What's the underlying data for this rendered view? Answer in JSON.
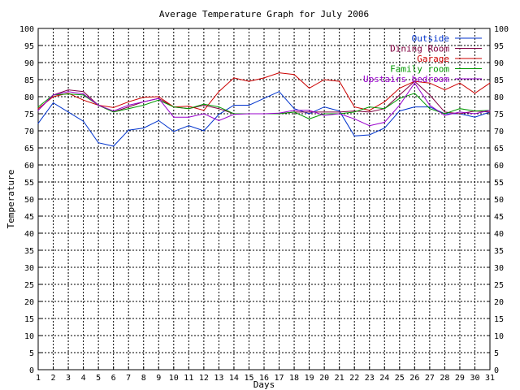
{
  "chart_data": {
    "type": "line",
    "title": "Average Temperature Graph for July 2006",
    "xlabel": "Days",
    "ylabel": "Temperature",
    "grid": true,
    "legend_position": "top-right",
    "xlim": [
      1,
      31
    ],
    "ylim": [
      0,
      100
    ],
    "x": [
      1,
      2,
      3,
      4,
      5,
      6,
      7,
      8,
      9,
      10,
      11,
      12,
      13,
      14,
      15,
      16,
      17,
      18,
      19,
      20,
      21,
      22,
      23,
      24,
      25,
      26,
      27,
      28,
      29,
      30,
      31
    ],
    "y_ticks": [
      0,
      5,
      10,
      15,
      20,
      25,
      30,
      35,
      40,
      45,
      50,
      55,
      60,
      65,
      70,
      75,
      80,
      85,
      90,
      95,
      100
    ],
    "series": [
      {
        "name": "Outside",
        "color": "#0033cc",
        "values": [
          72.2,
          78.2,
          75.5,
          72.8,
          66.5,
          65.5,
          70.2,
          70.8,
          73.0,
          69.8,
          71.5,
          70.0,
          74.8,
          77.5,
          77.5,
          79.5,
          81.5,
          76.5,
          75.0,
          77.0,
          75.8,
          68.5,
          68.8,
          70.8,
          75.8,
          77.0,
          77.0,
          75.0,
          75.0,
          74.0,
          75.5
        ]
      },
      {
        "name": "Dining Room",
        "color": "#800040",
        "values": [
          76.0,
          80.5,
          82.0,
          81.5,
          77.5,
          75.5,
          77.0,
          78.5,
          79.5,
          77.0,
          76.5,
          77.5,
          76.5,
          75.0,
          75.0,
          75.0,
          75.0,
          75.5,
          75.5,
          75.5,
          75.5,
          75.8,
          75.5,
          76.5,
          80.5,
          84.5,
          80.5,
          75.5,
          75.0,
          75.8,
          75.5
        ]
      },
      {
        "name": "Garage",
        "color": "#cc0000",
        "values": [
          76.5,
          80.0,
          81.0,
          79.0,
          77.5,
          76.8,
          78.5,
          79.8,
          80.0,
          77.0,
          77.2,
          76.0,
          81.5,
          85.5,
          84.5,
          85.5,
          87.0,
          86.5,
          82.5,
          85.0,
          84.5,
          77.0,
          76.0,
          78.5,
          82.5,
          84.5,
          84.0,
          82.0,
          84.0,
          81.0,
          84.0
        ]
      },
      {
        "name": "Family room",
        "color": "#009900",
        "values": [
          77.0,
          80.5,
          80.8,
          80.5,
          77.5,
          75.5,
          76.5,
          77.5,
          79.0,
          77.0,
          76.5,
          77.8,
          77.0,
          75.0,
          75.0,
          75.0,
          75.0,
          75.5,
          73.5,
          75.0,
          75.0,
          75.5,
          77.0,
          76.5,
          79.5,
          81.0,
          76.5,
          75.0,
          76.5,
          75.8,
          76.0
        ]
      },
      {
        "name": "Upstairs bedroom",
        "color": "#9900cc",
        "values": [
          76.0,
          80.5,
          81.5,
          80.8,
          77.5,
          75.8,
          77.5,
          78.5,
          79.5,
          74.0,
          74.0,
          75.0,
          73.0,
          74.8,
          75.0,
          75.0,
          75.2,
          76.0,
          76.0,
          74.5,
          75.0,
          73.5,
          71.5,
          72.5,
          77.5,
          84.0,
          77.5,
          74.5,
          75.5,
          75.0,
          76.0
        ]
      }
    ]
  }
}
